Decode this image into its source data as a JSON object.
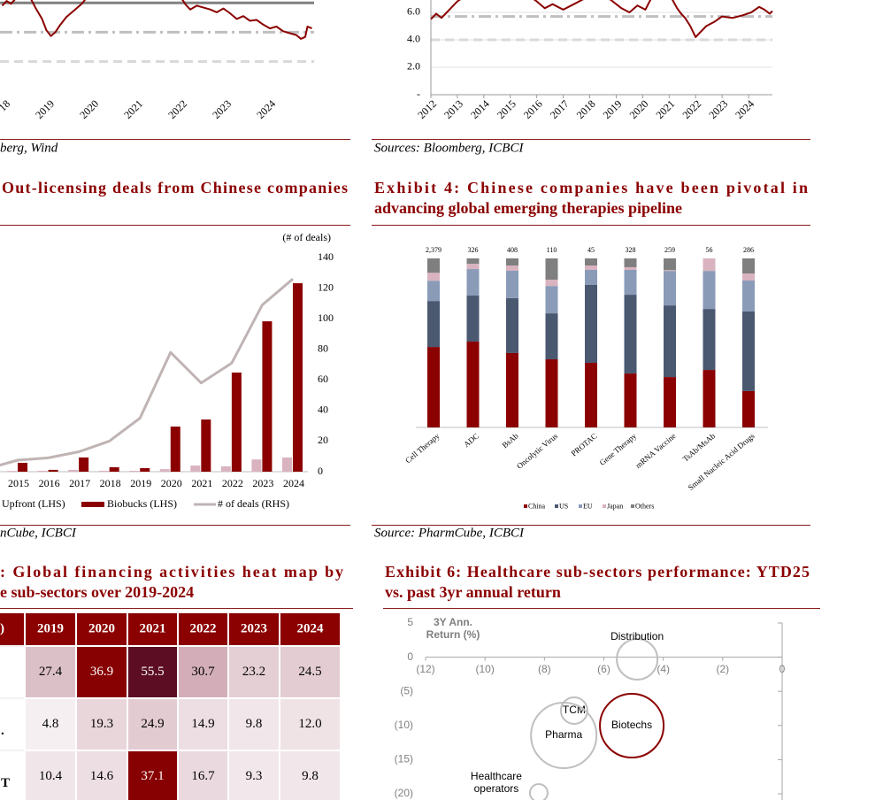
{
  "panels": {
    "top_left": {
      "source": "berg, Wind",
      "chart": {
        "type": "line",
        "xlim": [
          2017.9,
          2025.0
        ],
        "ylim": [
          0,
          10
        ],
        "xticks": [
          {
            "value": 2018,
            "label": "18"
          },
          2019,
          2020,
          2021,
          2022,
          2023,
          2024
        ],
        "x": [
          2017.95,
          2018.05,
          2018.15,
          2018.3,
          2018.5,
          2018.7,
          2018.85,
          2018.95,
          2019.05,
          2019.15,
          2019.25,
          2019.4,
          2019.6,
          2019.75,
          2019.9,
          2020.2,
          2021.0,
          2021.8,
          2022.0,
          2022.1,
          2022.2,
          2022.35,
          2022.5,
          2022.65,
          2022.8,
          2022.95,
          2023.1,
          2023.25,
          2023.4,
          2023.55,
          2023.7,
          2023.85,
          2024.0,
          2024.15,
          2024.3,
          2024.45,
          2024.6,
          2024.7,
          2024.8,
          2024.85,
          2024.95
        ],
        "series": [
          {
            "color": "#8b0000",
            "values": [
              9.4,
              9.9,
              9.6,
              10.4,
              11,
              9.2,
              8.0,
              6.8,
              6.2,
              6.6,
              7.3,
              8.2,
              9.0,
              9.6,
              10.5,
              12,
              13,
              11,
              10.2,
              9.5,
              9.0,
              9.4,
              9.2,
              9.0,
              8.7,
              9.1,
              8.6,
              8.0,
              8.3,
              7.8,
              7.9,
              7.4,
              7.0,
              7.2,
              6.7,
              6.5,
              6.3,
              5.9,
              6.1,
              7.2,
              7.0
            ]
          }
        ],
        "reference_lines": [
          {
            "value": 9.7,
            "color": "#808080",
            "style": "solid"
          },
          {
            "value": 6.6,
            "color": "#bfbfbf",
            "style": "dash-dot"
          },
          {
            "value": 3.5,
            "color": "#d9d9d9",
            "style": "dashed"
          }
        ]
      }
    },
    "top_right": {
      "source": "Sources: Bloomberg, ICBCI",
      "chart": {
        "type": "line",
        "xlim": [
          2012,
          2024.9
        ],
        "ylim": [
          0,
          6.9
        ],
        "grid": true,
        "xticks": [
          2012,
          2013,
          2014,
          2015,
          2016,
          2017,
          2018,
          2019,
          2020,
          2021,
          2022,
          2023,
          2024
        ],
        "yticks": [
          {
            "value": 0,
            "label": "-"
          },
          {
            "value": 2,
            "label": "2.0"
          },
          {
            "value": 4,
            "label": "4.0"
          },
          {
            "value": 6,
            "label": "6.0"
          }
        ],
        "x": [
          2012.0,
          2012.2,
          2012.4,
          2012.6,
          2012.8,
          2013.0,
          2013.3,
          2013.6,
          2014.0,
          2014.5,
          2015.0,
          2015.5,
          2016.0,
          2016.3,
          2016.6,
          2017.0,
          2017.4,
          2017.8,
          2018.3,
          2018.8,
          2019.2,
          2019.5,
          2019.8,
          2020.1,
          2020.4,
          2020.8,
          2021.1,
          2021.3,
          2021.45,
          2021.6,
          2021.8,
          2022.0,
          2022.2,
          2022.4,
          2022.7,
          2023.0,
          2023.4,
          2023.8,
          2024.1,
          2024.4,
          2024.6,
          2024.8,
          2024.9
        ],
        "series": [
          {
            "color": "#8b0000",
            "values": [
              5.5,
              5.9,
              5.6,
              6.0,
              6.4,
              6.8,
              7.2,
              7.4,
              7.6,
              7.2,
              7.8,
              7.5,
              6.8,
              6.3,
              6.6,
              6.2,
              6.6,
              7.0,
              7.5,
              6.9,
              6.3,
              6.0,
              6.5,
              6.2,
              7.3,
              7.8,
              7.0,
              6.3,
              5.9,
              5.6,
              5.0,
              4.2,
              4.6,
              5.0,
              5.3,
              5.7,
              5.6,
              5.8,
              6.0,
              6.4,
              6.2,
              5.9,
              6.1
            ]
          }
        ],
        "reference_lines": [
          {
            "value": 5.7,
            "color": "#bfbfbf",
            "style": "dash-dot"
          },
          {
            "value": 4.0,
            "color": "#d9d9d9",
            "style": "dashed"
          }
        ]
      }
    },
    "middle_left": {
      "title": "Out-licensing deals from Chinese companies",
      "source": "nCube, ICBCI",
      "chart": {
        "type": "bar-line",
        "y2_label": "(# of deals)",
        "categories": [
          null,
          "2015",
          "2016",
          "2017",
          "2018",
          "2019",
          "2020",
          "2021",
          "2022",
          "2023",
          "2024"
        ],
        "ylim": [
          0,
          140
        ],
        "y2lim": [
          0,
          140
        ],
        "y2ticks": [
          0,
          20,
          40,
          60,
          80,
          100,
          120,
          140
        ],
        "series": [
          {
            "name": "Upfront (LHS)",
            "type": "bar",
            "color": "#d9b3bf",
            "values": [
              0.5,
              0.5,
              0.6,
              1.2,
              0.6,
              0.6,
              1.7,
              4,
              3.5,
              8,
              9.3
            ]
          },
          {
            "name": "Biobucks (LHS)",
            "type": "bar",
            "color": "#8b0000",
            "values": [
              0.8,
              5.8,
              1.2,
              9.3,
              2.9,
              2.3,
              29.5,
              34.1,
              64.8,
              98.3,
              123.2
            ]
          },
          {
            "name": "# of deals (RHS)",
            "type": "line",
            "axis": "y2",
            "color": "#c0b4b4",
            "values": [
              2,
              7.5,
              9,
              13,
              20,
              35,
              78,
              58,
              71,
              109,
              126
            ]
          }
        ]
      }
    },
    "middle_right": {
      "title": [
        "Exhibit 4: Chinese companies have been pivotal in",
        "advancing global emerging therapies pipeline"
      ],
      "source": "Source: PharmCube, ICBCI",
      "chart": {
        "type": "stacked-bar",
        "ylim": [
          0,
          100
        ],
        "categories": [
          "Cell Therapy",
          "ADC",
          "BsAb",
          "Oncolytic Virus",
          "PROTAC",
          "Gene Therapy",
          "mRNA Vaccine",
          "TsAb/MsAb",
          "Small Nucleic Acid Drugs"
        ],
        "totals": {
          "values": [
            2379,
            326,
            408,
            110,
            45,
            328,
            259,
            56,
            286
          ],
          "value_labels": [
            "2,379",
            "326",
            "408",
            "110",
            "45",
            "328",
            "259",
            "56",
            "286"
          ]
        },
        "series": [
          {
            "name": "China",
            "color": "#8b0000",
            "values": [
              47.6,
              50.8,
              44.0,
              40.3,
              38.2,
              31.9,
              29.8,
              34.0,
              21.5
            ]
          },
          {
            "name": "US",
            "color": "#4a5870",
            "values": [
              27.2,
              27.2,
              32.5,
              27.2,
              46.1,
              46.6,
              42.4,
              36.1,
              47.1
            ]
          },
          {
            "name": "EU",
            "color": "#8a9bb8",
            "values": [
              12.0,
              15.7,
              16.2,
              16.2,
              8.9,
              14.7,
              20.4,
              22.5,
              18.3
            ]
          },
          {
            "name": "Japan",
            "color": "#d9b3bf",
            "values": [
              4.7,
              3.1,
              3.1,
              3.7,
              2.6,
              1.6,
              0.5,
              7.4,
              4.2
            ]
          },
          {
            "name": "Others",
            "color": "#7f7f7f",
            "values": [
              8.5,
              3.2,
              4.2,
              12.6,
              4.2,
              5.2,
              6.9,
              0,
              8.9
            ]
          }
        ]
      }
    },
    "bottom_left": {
      "title": [
        ": Global financing activities heat map by",
        "e sub-sectors over 2019-2024"
      ],
      "table": {
        "header": [
          ")",
          "2019",
          "2020",
          "2021",
          "2022",
          "2023",
          "2024"
        ],
        "rows": [
          {
            "values": [
              "27.4",
              "36.9",
              "55.5",
              "30.7",
              "23.2",
              "24.5"
            ]
          },
          {
            "label": ".",
            "values": [
              "4.8",
              "19.3",
              "24.9",
              "14.9",
              "9.8",
              "12.0"
            ]
          },
          {
            "label": "T",
            "values": [
              "10.4",
              "14.6",
              "37.1",
              "16.7",
              "9.3",
              "9.8"
            ]
          }
        ]
      }
    },
    "bottom_right": {
      "title": [
        "Exhibit 6: Healthcare sub-sectors performance: YTD25",
        "vs. past 3yr annual return"
      ],
      "chart": {
        "type": "bubble",
        "axis_title": [
          "3Y Ann.",
          "Return (%)"
        ],
        "xlim": [
          -12,
          0
        ],
        "ylim": [
          -20,
          5
        ],
        "xticks": [
          {
            "value": -12,
            "label": "(12)"
          },
          {
            "value": -10,
            "label": "(10)"
          },
          {
            "value": -8,
            "label": "(8)"
          },
          {
            "value": -6,
            "label": "(6)"
          },
          {
            "value": -4,
            "label": "(4)"
          },
          {
            "value": -2,
            "label": "(2)"
          },
          0
        ],
        "yticks": [
          5,
          0,
          {
            "value": -5,
            "label": "(5)"
          },
          {
            "value": -10,
            "label": "(10)"
          },
          {
            "value": -15,
            "label": "(15)"
          },
          {
            "value": -20,
            "label": "(20)"
          }
        ],
        "points": [
          {
            "name": [
              "Distribution"
            ],
            "x": -4.88,
            "y": -0.31,
            "size": 529,
            "color": "#bfbfbf",
            "label_position": "above"
          },
          {
            "name": [
              "Biotechs"
            ],
            "x": -5.06,
            "y": -10.03,
            "size": 1296,
            "color": "#8b0000",
            "label_position": "center"
          },
          {
            "name": [
              "TCM"
            ],
            "x": -7.0,
            "y": -7.82,
            "size": 225,
            "color": "#bfbfbf",
            "label_position": "center"
          },
          {
            "name": [
              "Pharma"
            ],
            "x": -7.35,
            "y": -11.45,
            "size": 1369,
            "color": "#bfbfbf",
            "label_position": "center"
          },
          {
            "name": [
              "Healthcare",
              "operators"
            ],
            "x": -8.19,
            "y": -19.87,
            "size": 100,
            "color": "#bfbfbf",
            "label_position": "above-left"
          }
        ]
      }
    }
  }
}
